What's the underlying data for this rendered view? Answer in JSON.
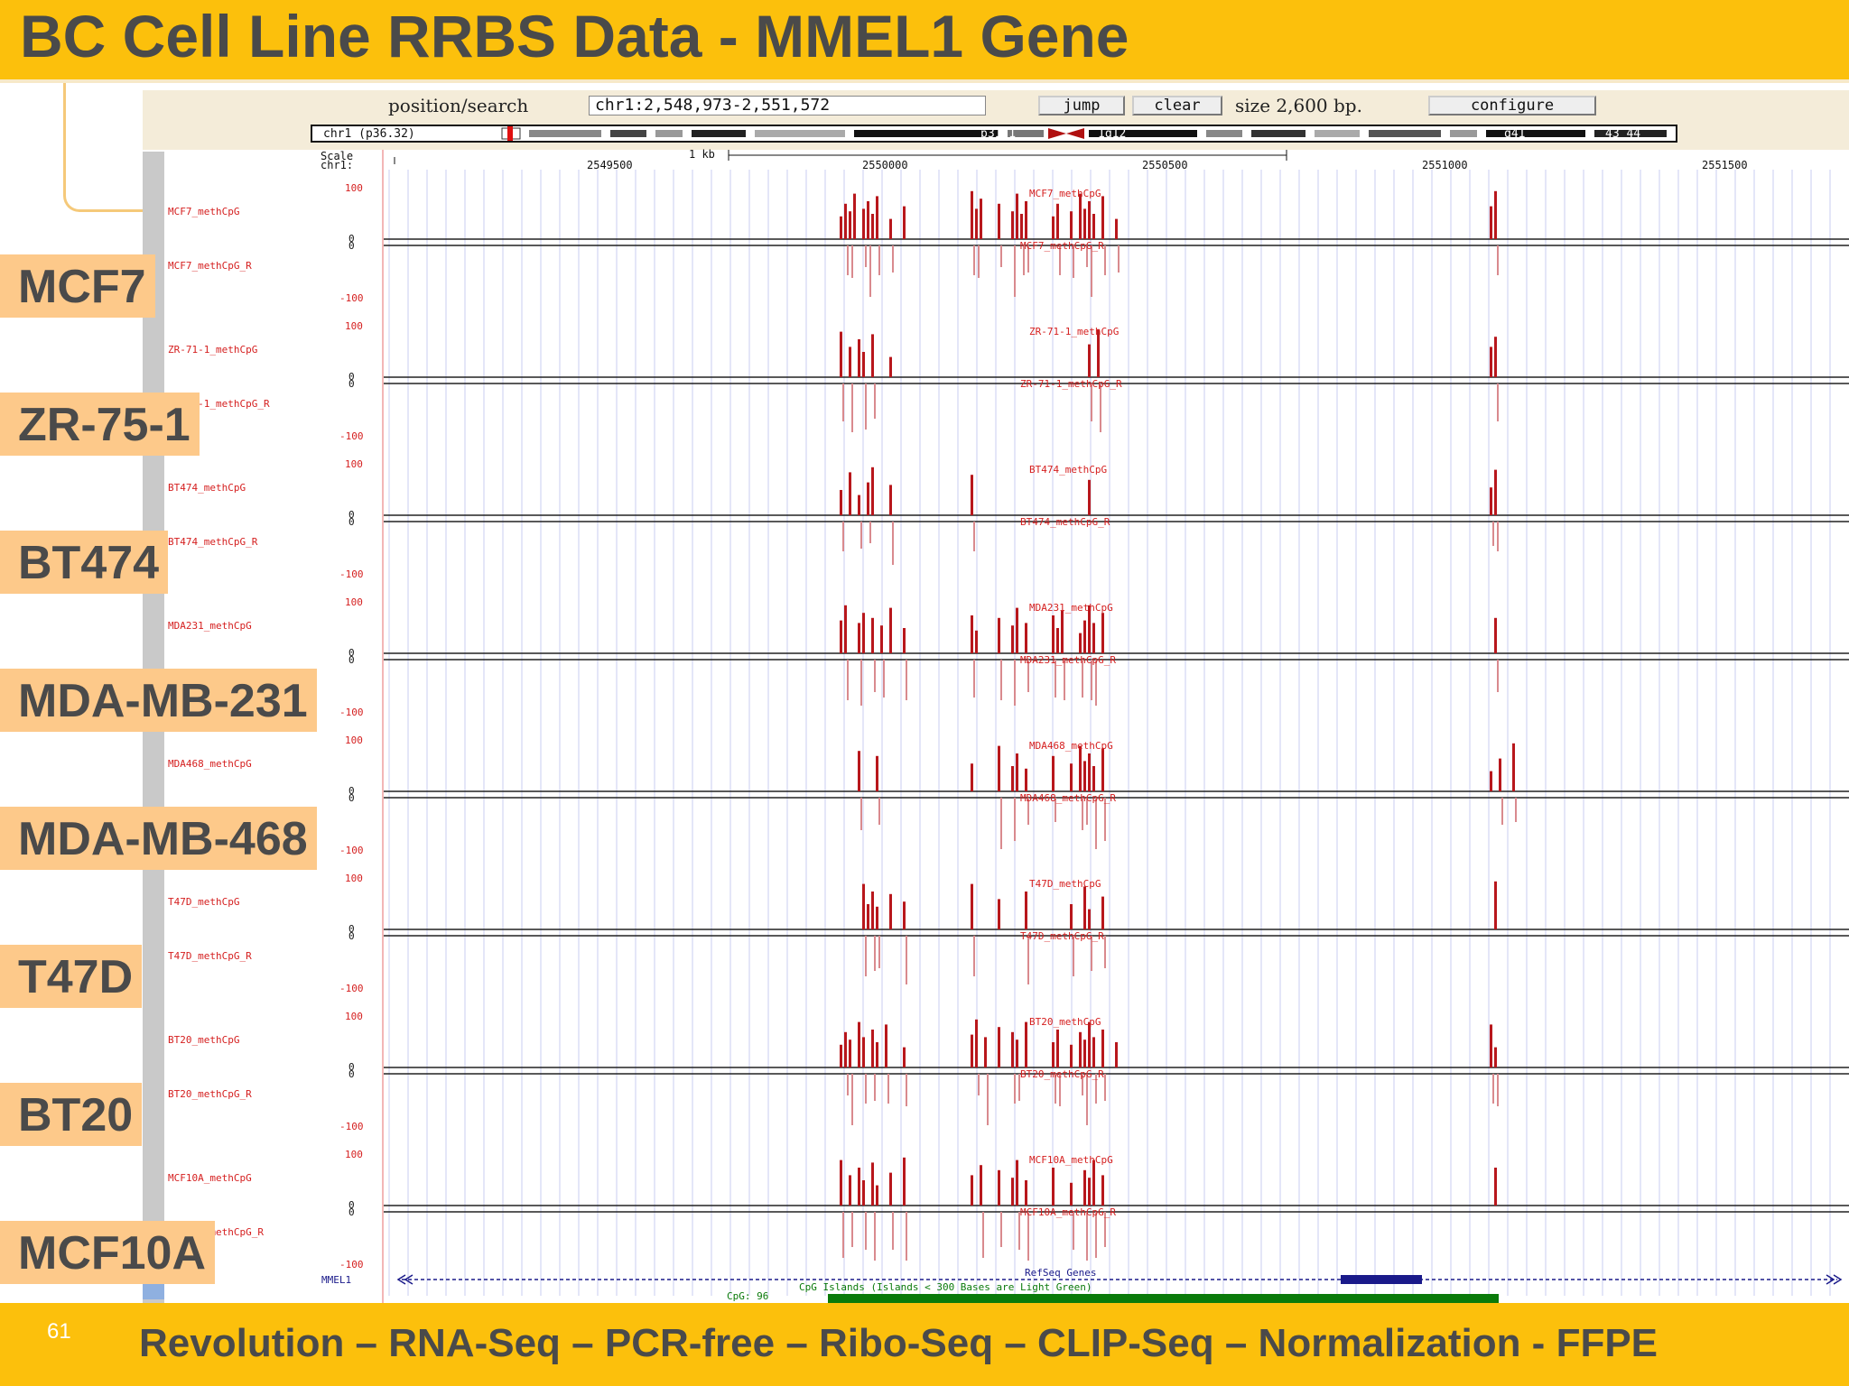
{
  "title": "BC Cell Line RRBS Data - MMEL1 Gene",
  "browser": {
    "position_label": "position/search",
    "position_value": "chr1:2,548,973-2,551,572",
    "jump_label": "jump",
    "clear_label": "clear",
    "size_text": "size 2,600 bp.",
    "configure_label": "configure",
    "chrom_band_label": "chr1 (p36.32)",
    "band_labels": [
      "p31.1",
      "1q12",
      "q41",
      "43 44"
    ],
    "scale_label": "Scale",
    "chr_label": "chr1:",
    "scale_bar_label": "1 kb",
    "coordinates": [
      "2549500",
      "2550000",
      "2550500",
      "2551000",
      "2551500"
    ],
    "axis_max": "100",
    "axis_zero": "0",
    "axis_min": "-100",
    "refseq_header": "RefSeq Genes",
    "gene_name": "MMEL1",
    "cpg_header": "CpG Islands (Islands < 300 Bases are Light Green)",
    "cpg_label": "CpG: 96"
  },
  "tracks": [
    {
      "cell": "MCF7",
      "fwd": "MCF7_methCpG",
      "rev": "MCF7_methCpG_R"
    },
    {
      "cell": "ZR-75-1",
      "fwd": "ZR-71-1_methCpG",
      "rev": "ZR-71-1_methCpG_R"
    },
    {
      "cell": "BT474",
      "fwd": "BT474_methCpG",
      "rev": "BT474_methCpG_R"
    },
    {
      "cell": "MDA-MB-231",
      "fwd": "MDA231_methCpG",
      "rev": "MDA231_methCpG_R"
    },
    {
      "cell": "MDA-MB-468",
      "fwd": "MDA468_methCpG",
      "rev": "MDA468_methCpG_R"
    },
    {
      "cell": "T47D",
      "fwd": "T47D_methCpG",
      "rev": "T47D_methCpG_R"
    },
    {
      "cell": "BT20",
      "fwd": "BT20_methCpG",
      "rev": "BT20_methCpG_R"
    },
    {
      "cell": "MCF10A",
      "fwd": "MCF10A_methCpG",
      "rev": "MCF10A_methCpG_R"
    }
  ],
  "footer": {
    "page_number": "61",
    "tagline": "Revolution – RNA-Seq – PCR-free – Ribo-Seq – CLIP-Seq – Normalization - FFPE"
  },
  "colors": {
    "header_bg": "#fcc00c",
    "label_bg": "#fdc98a",
    "meth_bar": "#b8171c",
    "meth_bar_rev": "#d98a8e",
    "gridline": "#c8cdf0",
    "gene": "#1a1a8a",
    "cpg_island": "#0a7a0a"
  }
}
